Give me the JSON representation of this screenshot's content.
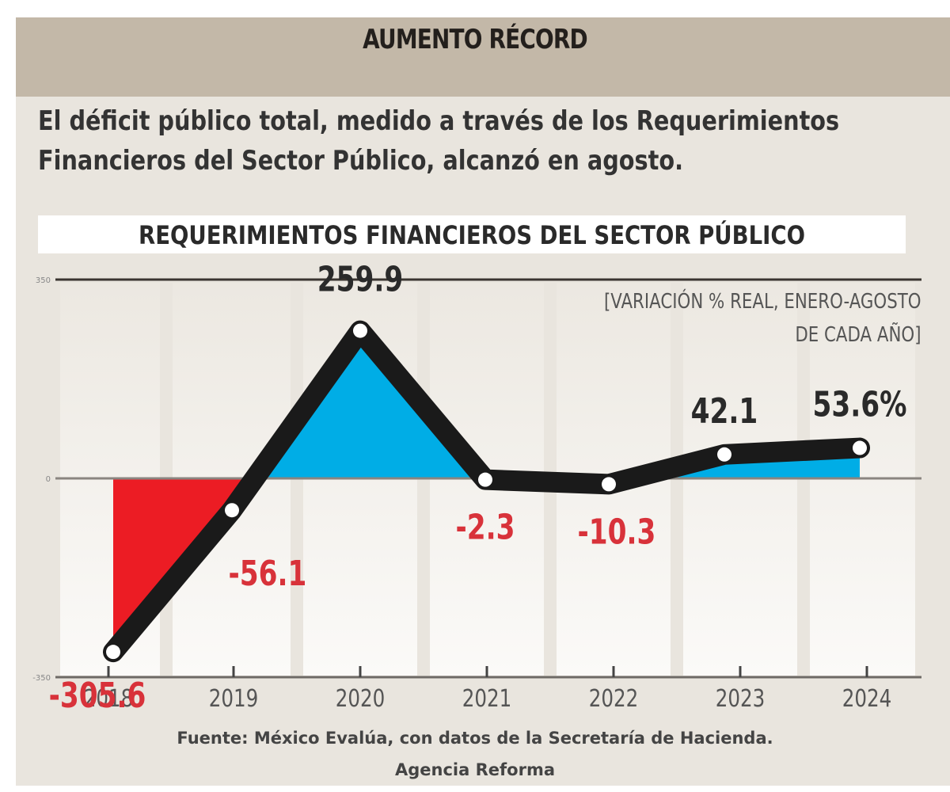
{
  "header": {
    "title": "AUMENTO RÉCORD"
  },
  "subtitle": {
    "line1": "El déficit público total, medido a través de los Requerimientos",
    "line2": "Financieros del Sector Público, alcanzó en agosto."
  },
  "colors": {
    "positive_fill": "#00ade6",
    "negative_fill": "#ec1c24",
    "line": "#1a1a1a",
    "negative_label": "#d8323a",
    "positive_label": "#2a2a2a"
  },
  "chart_data": {
    "type": "line",
    "title": "REQUERIMIENTOS FINANCIEROS DEL SECTOR PÚBLICO",
    "units_line1": "[VARIACIÓN % REAL, ENERO-AGOSTO",
    "units_line2": "DE CADA AÑO]",
    "xlabel": "",
    "ylabel": "",
    "categories": [
      "2018",
      "2019",
      "2020",
      "2021",
      "2022",
      "2023",
      "2024"
    ],
    "values": [
      -305.6,
      -56.1,
      259.9,
      -2.3,
      -10.3,
      42.1,
      53.6
    ],
    "data_labels": [
      "-305.6",
      "-56.1",
      "259.9",
      "-2.3",
      "-10.3",
      "42.1",
      "53.6%"
    ],
    "ylim": [
      -350,
      350
    ],
    "y_ticks": [
      "350",
      "0",
      "-350"
    ],
    "grid": false,
    "legend": "none"
  },
  "footer": {
    "source": "Fuente: México Evalúa, con datos de la Secretaría de Hacienda.",
    "agency": "Agencia Reforma"
  }
}
